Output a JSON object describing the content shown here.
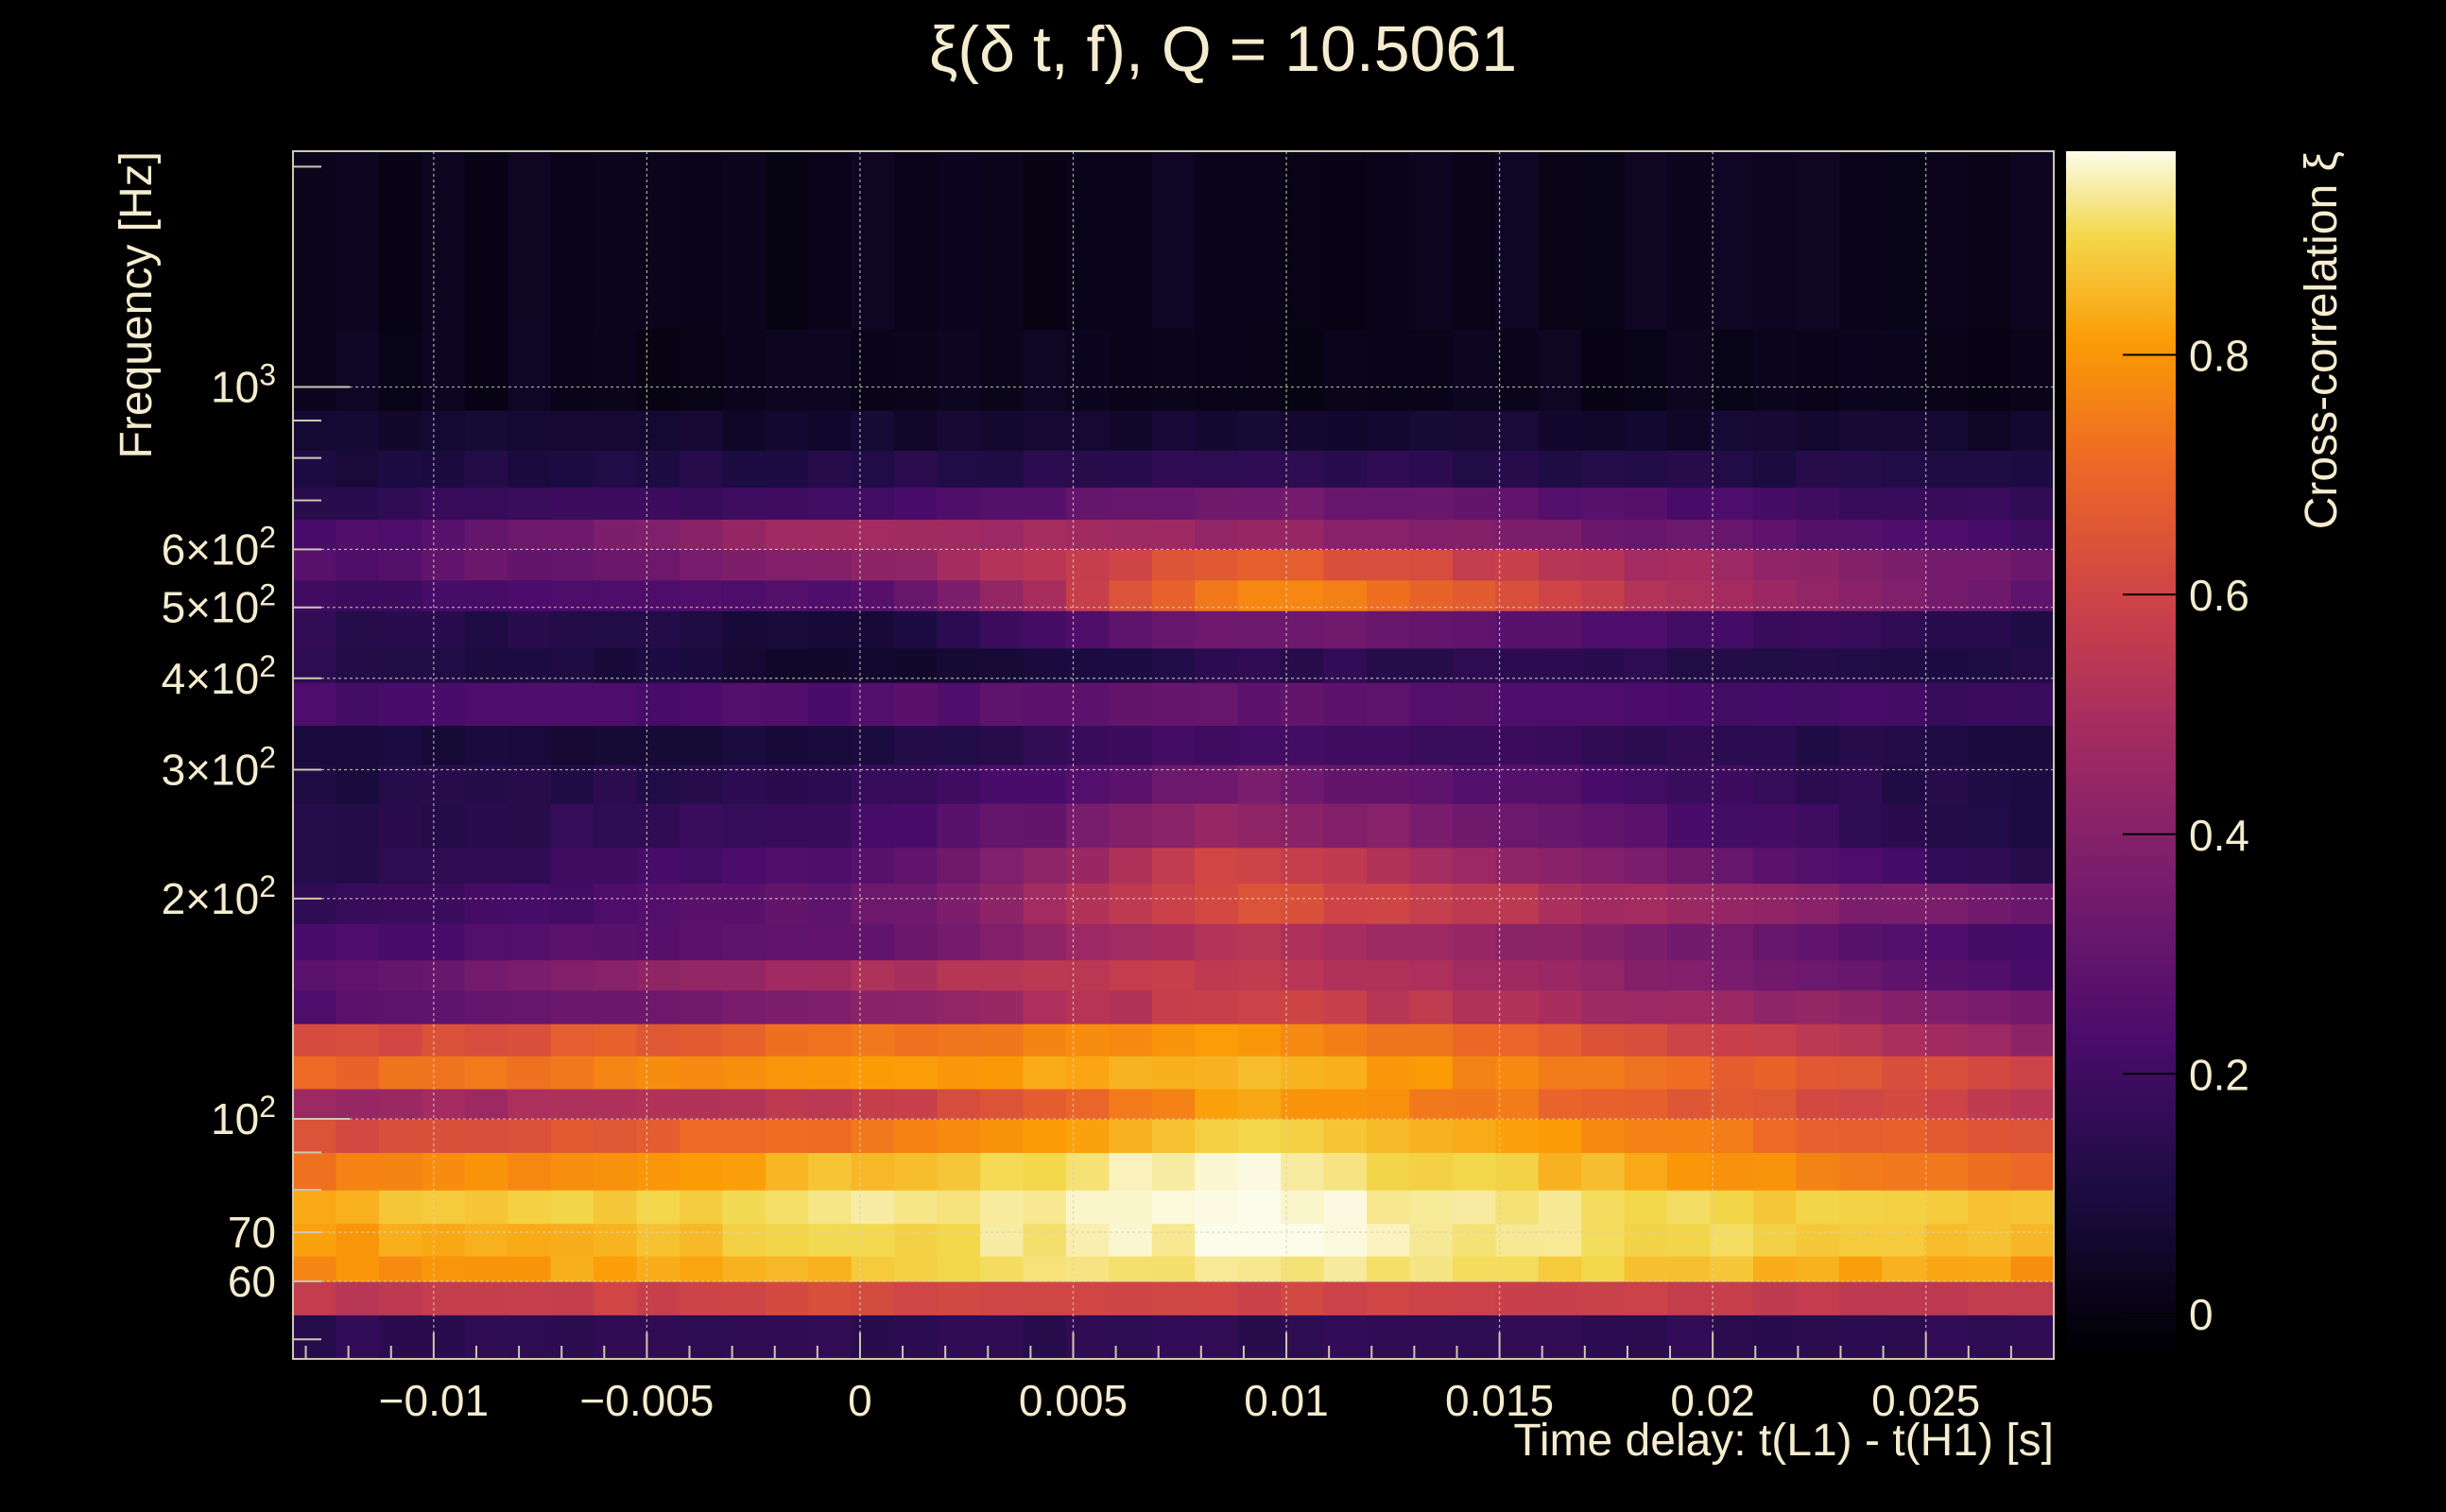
{
  "chart_data": {
    "type": "heatmap",
    "title": "ξ(δ t, f), Q = 10.5061",
    "xlabel": "Time delay: t(L1) - t(H1) [s]",
    "ylabel": "Frequency [Hz]",
    "colorbar_label": "Cross-correlation ξ",
    "x_range": [
      -0.0133,
      0.028
    ],
    "y_range": [
      47,
      2100
    ],
    "y_scale": "log",
    "z_range": [
      -0.03,
      0.97
    ],
    "grid": true,
    "colormap": "inferno",
    "x_ticks": [
      {
        "value": -0.01,
        "label": "−0.01"
      },
      {
        "value": -0.005,
        "label": "−0.005"
      },
      {
        "value": 0,
        "label": "0"
      },
      {
        "value": 0.005,
        "label": "0.005"
      },
      {
        "value": 0.01,
        "label": "0.01"
      },
      {
        "value": 0.015,
        "label": "0.015"
      },
      {
        "value": 0.02,
        "label": "0.02"
      },
      {
        "value": 0.025,
        "label": "0.025"
      }
    ],
    "y_ticks": [
      {
        "value": 60,
        "base": "60",
        "exp": ""
      },
      {
        "value": 70,
        "base": "70",
        "exp": ""
      },
      {
        "value": 100,
        "base": "10",
        "exp": "2"
      },
      {
        "value": 200,
        "base": "2×10",
        "exp": "2"
      },
      {
        "value": 300,
        "base": "3×10",
        "exp": "2"
      },
      {
        "value": 400,
        "base": "4×10",
        "exp": "2"
      },
      {
        "value": 500,
        "base": "5×10",
        "exp": "2"
      },
      {
        "value": 600,
        "base": "6×10",
        "exp": "2"
      },
      {
        "value": 1000,
        "base": "10",
        "exp": "3"
      }
    ],
    "colorbar_ticks": [
      {
        "value": 0,
        "label": "0"
      },
      {
        "value": 0.2,
        "label": "0.2"
      },
      {
        "value": 0.4,
        "label": "0.4"
      },
      {
        "value": 0.6,
        "label": "0.6"
      },
      {
        "value": 0.8,
        "label": "0.8"
      }
    ],
    "frequency_bands_hz": [
      [
        47,
        54,
        0.15,
        0.15,
        0.15,
        0.15
      ],
      [
        54,
        60,
        0.55,
        0.62,
        0.6,
        0.55
      ],
      [
        60,
        65,
        0.78,
        0.86,
        0.95,
        0.8
      ],
      [
        65,
        72,
        0.8,
        0.9,
        0.96,
        0.85
      ],
      [
        72,
        80,
        0.84,
        0.92,
        0.97,
        0.85
      ],
      [
        80,
        90,
        0.74,
        0.86,
        0.96,
        0.7
      ],
      [
        90,
        100,
        0.62,
        0.72,
        0.9,
        0.62
      ],
      [
        100,
        110,
        0.45,
        0.55,
        0.82,
        0.55
      ],
      [
        110,
        122,
        0.7,
        0.8,
        0.86,
        0.58
      ],
      [
        122,
        135,
        0.6,
        0.72,
        0.82,
        0.42
      ],
      [
        135,
        150,
        0.25,
        0.4,
        0.6,
        0.35
      ],
      [
        150,
        165,
        0.25,
        0.5,
        0.58,
        0.22
      ],
      [
        165,
        185,
        0.22,
        0.3,
        0.55,
        0.2
      ],
      [
        185,
        210,
        0.15,
        0.3,
        0.65,
        0.3
      ],
      [
        210,
        235,
        0.12,
        0.25,
        0.62,
        0.1
      ],
      [
        235,
        270,
        0.12,
        0.2,
        0.45,
        0.08
      ],
      [
        270,
        305,
        0.1,
        0.15,
        0.35,
        0.08
      ],
      [
        305,
        345,
        0.08,
        0.1,
        0.22,
        0.08
      ],
      [
        345,
        395,
        0.22,
        0.25,
        0.3,
        0.18
      ],
      [
        395,
        440,
        0.15,
        0.05,
        0.15,
        0.12
      ],
      [
        440,
        495,
        0.15,
        0.08,
        0.35,
        0.12
      ],
      [
        495,
        545,
        0.2,
        0.25,
        0.8,
        0.28
      ],
      [
        545,
        600,
        0.25,
        0.4,
        0.7,
        0.3
      ],
      [
        600,
        660,
        0.2,
        0.5,
        0.45,
        0.2
      ],
      [
        660,
        730,
        0.15,
        0.2,
        0.35,
        0.15
      ],
      [
        730,
        820,
        0.1,
        0.12,
        0.15,
        0.1
      ],
      [
        820,
        930,
        0.06,
        0.06,
        0.08,
        0.05
      ],
      [
        930,
        1200,
        0.02,
        0.02,
        0.02,
        0.02
      ],
      [
        1200,
        2100,
        0.02,
        0.02,
        0.02,
        0.02
      ]
    ],
    "band_columns_note": ""
  }
}
